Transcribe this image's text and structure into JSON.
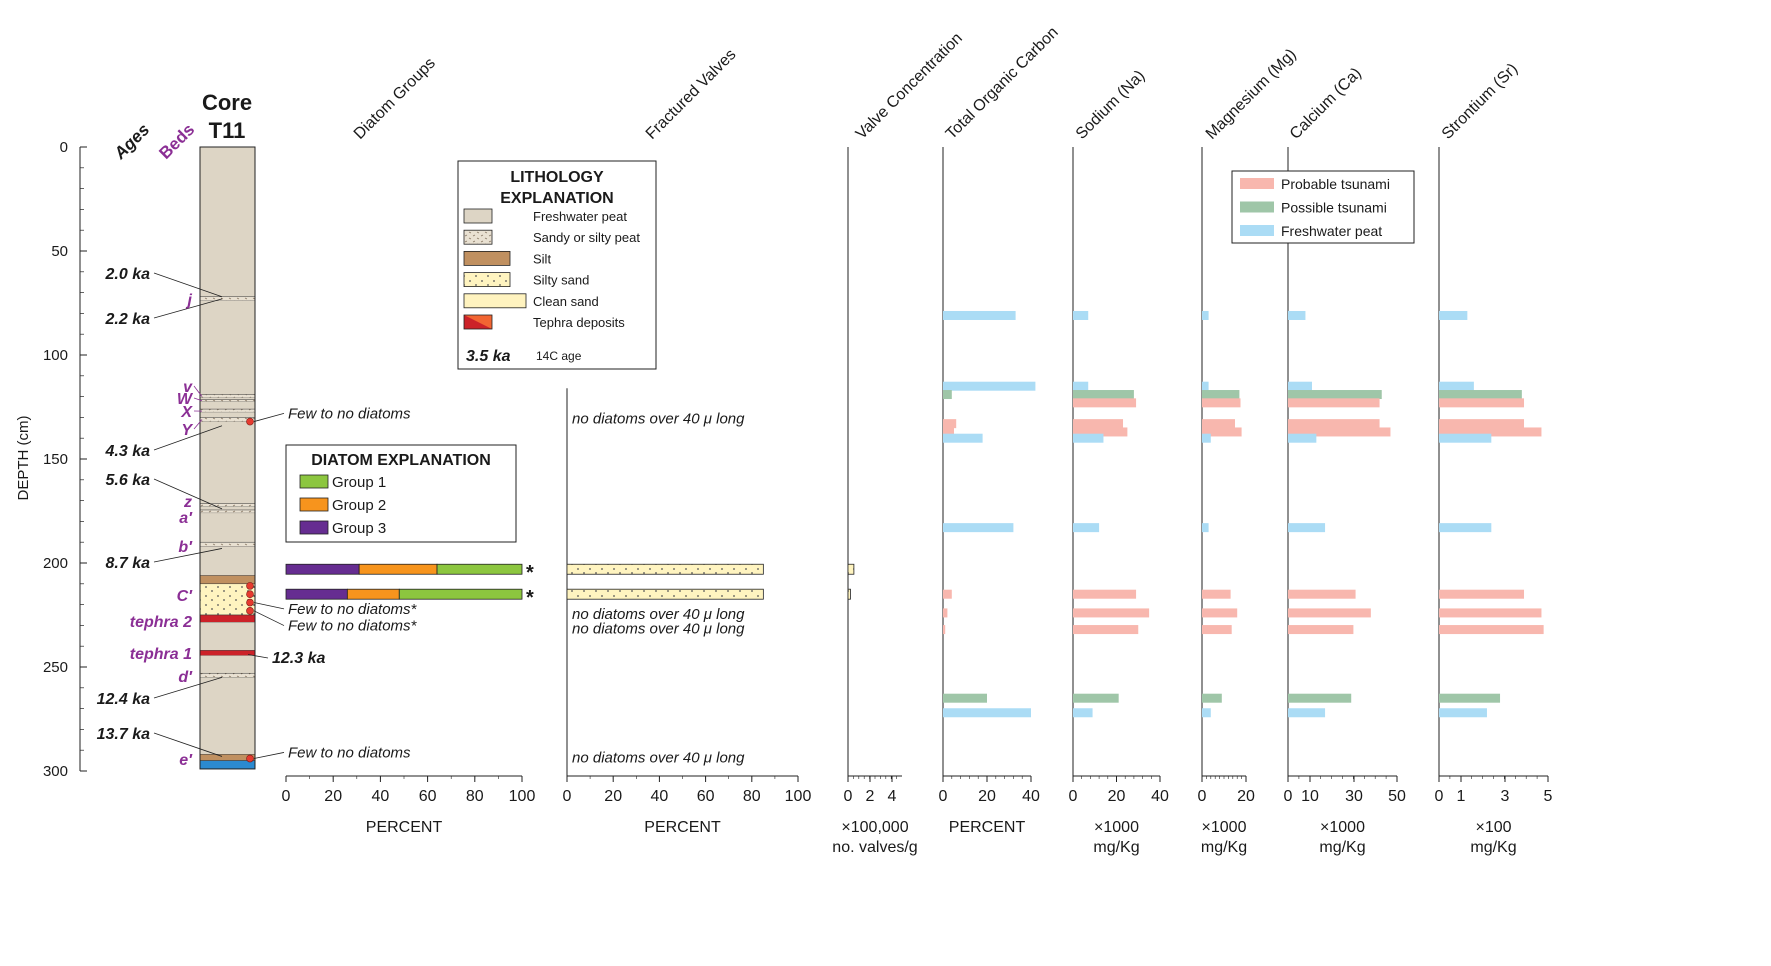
{
  "core": {
    "title_line1": "Core",
    "title_line2": "T11",
    "ages_label": "Ages",
    "beds_label": "Beds",
    "depth_axis": {
      "label": "DEPTH (cm)",
      "min": 0,
      "max": 300,
      "ticks": [
        "0",
        "50",
        "100",
        "150",
        "200",
        "250",
        "300"
      ]
    },
    "ages": [
      {
        "text": "2.0 ka",
        "depth": 72
      },
      {
        "text": "2.2 ka",
        "depth": 73
      },
      {
        "text": "4.3 ka",
        "depth": 134
      },
      {
        "text": "5.6 ka",
        "depth": 174
      },
      {
        "text": "8.7 ka",
        "depth": 193
      },
      {
        "text": "12.3 ka",
        "depth": 244
      },
      {
        "text": "12.4 ka",
        "depth": 255
      },
      {
        "text": "13.7 ka",
        "depth": 293
      }
    ],
    "beds": [
      {
        "text": "j",
        "depth": 73
      },
      {
        "text": "v",
        "depth": 120
      },
      {
        "text": "W",
        "depth": 122
      },
      {
        "text": "X",
        "depth": 127
      },
      {
        "text": "Y",
        "depth": 131
      },
      {
        "text": "z",
        "depth": 172
      },
      {
        "text": "a′",
        "depth": 175
      },
      {
        "text": "b′",
        "depth": 191
      },
      {
        "text": "C′",
        "depth": 215
      },
      {
        "text": "tephra 2",
        "depth": 227
      },
      {
        "text": "tephra 1",
        "depth": 243
      },
      {
        "text": "d′",
        "depth": 255
      },
      {
        "text": "e′",
        "depth": 294
      }
    ],
    "layers": [
      {
        "type": "peat",
        "top": 0,
        "bottom": 72
      },
      {
        "type": "sandy_peat",
        "top": 72,
        "bottom": 74
      },
      {
        "type": "peat",
        "top": 74,
        "bottom": 119
      },
      {
        "type": "sandy_peat",
        "top": 119,
        "bottom": 120.5
      },
      {
        "type": "peat",
        "top": 120.5,
        "bottom": 121.5
      },
      {
        "type": "sandy_peat",
        "top": 121.5,
        "bottom": 122.5
      },
      {
        "type": "peat",
        "top": 122.5,
        "bottom": 126
      },
      {
        "type": "sandy_peat",
        "top": 126,
        "bottom": 127.5
      },
      {
        "type": "peat",
        "top": 127.5,
        "bottom": 130
      },
      {
        "type": "sandy_peat",
        "top": 130,
        "bottom": 132
      },
      {
        "type": "peat",
        "top": 132,
        "bottom": 171.5
      },
      {
        "type": "sandy_peat",
        "top": 171.5,
        "bottom": 173
      },
      {
        "type": "peat",
        "top": 173,
        "bottom": 174.5
      },
      {
        "type": "sandy_peat",
        "top": 174.5,
        "bottom": 176
      },
      {
        "type": "peat",
        "top": 176,
        "bottom": 190
      },
      {
        "type": "sandy_peat",
        "top": 190,
        "bottom": 192
      },
      {
        "type": "peat",
        "top": 192,
        "bottom": 206
      },
      {
        "type": "silt",
        "top": 206,
        "bottom": 210
      },
      {
        "type": "silty_sand",
        "top": 210,
        "bottom": 225
      },
      {
        "type": "tephra",
        "top": 225,
        "bottom": 228.5
      },
      {
        "type": "peat",
        "top": 228.5,
        "bottom": 242
      },
      {
        "type": "tephra",
        "top": 242,
        "bottom": 244.5
      },
      {
        "type": "peat",
        "top": 244.5,
        "bottom": 253
      },
      {
        "type": "sandy_peat",
        "top": 253,
        "bottom": 255
      },
      {
        "type": "peat",
        "top": 255,
        "bottom": 292
      },
      {
        "type": "silt",
        "top": 292,
        "bottom": 295
      },
      {
        "type": "base",
        "top": 295,
        "bottom": 299
      }
    ],
    "samples": [
      {
        "depth": 132,
        "note": "Few to no diatoms",
        "note_depth": 130
      },
      {
        "depth": 211,
        "note": "",
        "note_depth": 211
      },
      {
        "depth": 215,
        "note": "",
        "note_depth": 215
      },
      {
        "depth": 219,
        "note": "Few to no diatoms*",
        "note_depth": 224
      },
      {
        "depth": 223,
        "note": "Few to no diatoms*",
        "note_depth": 232
      },
      {
        "depth": 294,
        "note": "Few to no diatoms",
        "note_depth": 293
      }
    ]
  },
  "lithology_legend": {
    "title_line1": "LITHOLOGY",
    "title_line2": "EXPLANATION",
    "items": [
      {
        "type": "peat",
        "label": "Freshwater peat"
      },
      {
        "type": "sandy_peat",
        "label": "Sandy or silty peat"
      },
      {
        "type": "silt",
        "label": "Silt"
      },
      {
        "type": "silty_sand",
        "label": "Silty sand"
      },
      {
        "type": "clean_sand",
        "label": "Clean sand"
      },
      {
        "type": "tephra",
        "label": "Tephra deposits"
      }
    ],
    "age_example": "3.5 ka",
    "age_example_label": "14C age"
  },
  "diatom_legend": {
    "title": "DIATOM EXPLANATION",
    "items": [
      {
        "label": "Group 1",
        "color": "#8cc63f"
      },
      {
        "label": "Group 2",
        "color": "#f7941d"
      },
      {
        "label": "Group 3",
        "color": "#662d91"
      }
    ]
  },
  "element_legend": [
    {
      "label": "Probable tsunami",
      "color": "#f8b7ae"
    },
    {
      "label": "Possible tsunami",
      "color": "#9fc6a8"
    },
    {
      "label": "Freshwater peat",
      "color": "#abdcf5"
    }
  ],
  "colors": {
    "peat": "#ddd5c5",
    "silt": "#c09060",
    "silty_sand": "#fff4c0",
    "clean_sand": "#fff3bf",
    "tephra": "#cc2229",
    "tephra_light": "#f26532",
    "base": "#2b8ad0",
    "probable": "#f8b7ae",
    "possible": "#9fc6a8",
    "peat_sample": "#abdcf5",
    "sample_dot": "#e63a2f"
  },
  "chart_data": [
    {
      "type": "bar",
      "title": "Diatom Groups",
      "xlabel": "PERCENT",
      "xlim": [
        0,
        100
      ],
      "ticks": [
        "0",
        "20",
        "40",
        "60",
        "80",
        "100"
      ],
      "rows": [
        {
          "depth": 203,
          "group3": 31,
          "group2": 33,
          "group1": 36,
          "mark": "*"
        },
        {
          "depth": 215,
          "group3": 26,
          "group2": 22,
          "group1": 52,
          "mark": "*"
        }
      ]
    },
    {
      "type": "bar",
      "title": "Fractured Valves",
      "xlabel": "PERCENT",
      "xlim": [
        0,
        100
      ],
      "ticks": [
        "0",
        "20",
        "40",
        "60",
        "80",
        "100"
      ],
      "rows": [
        {
          "depth": 203,
          "value": 85
        },
        {
          "depth": 215,
          "value": 85
        }
      ],
      "notes": [
        {
          "depth": 130,
          "text": "no diatoms over 40 μ long"
        },
        {
          "depth": 224,
          "text": "no diatoms over 40 μ long"
        },
        {
          "depth": 231,
          "text": "no diatoms over 40 μ long"
        },
        {
          "depth": 293,
          "text": "no diatoms over 40 μ long"
        }
      ]
    },
    {
      "type": "bar",
      "title": "Valve Concentration",
      "xlabel_line1": "×100,000",
      "xlabel_line2": "no. valves/g",
      "xlim": [
        0,
        5.5
      ],
      "ticks": [
        "0",
        "2",
        "4"
      ],
      "rows": [
        {
          "depth": 203,
          "value": 0.6
        },
        {
          "depth": 215,
          "value": 0.25
        }
      ]
    },
    {
      "type": "bar",
      "title": "Total Organic Carbon",
      "xlabel": "PERCENT",
      "xlim": [
        0,
        40
      ],
      "ticks": [
        "0",
        "20",
        "40"
      ],
      "rows": [
        {
          "depth": 81,
          "value": 33,
          "class": "peat"
        },
        {
          "depth": 115,
          "value": 42,
          "class": "peat"
        },
        {
          "depth": 119,
          "value": 4,
          "class": "possible"
        },
        {
          "depth": 133,
          "value": 6,
          "class": "probable"
        },
        {
          "depth": 137,
          "value": 5,
          "class": "probable"
        },
        {
          "depth": 140,
          "value": 18,
          "class": "peat"
        },
        {
          "depth": 183,
          "value": 32,
          "class": "peat"
        },
        {
          "depth": 215,
          "value": 4,
          "class": "probable"
        },
        {
          "depth": 224,
          "value": 2,
          "class": "probable"
        },
        {
          "depth": 232,
          "value": 1,
          "class": "probable"
        },
        {
          "depth": 265,
          "value": 20,
          "class": "possible"
        },
        {
          "depth": 272,
          "value": 40,
          "class": "peat"
        }
      ]
    },
    {
      "type": "bar",
      "title": "Sodium (Na)",
      "xlabel_line1": "×1000",
      "xlabel_line2": "mg/Kg",
      "xlim": [
        0,
        40
      ],
      "ticks": [
        "0",
        "20",
        "40"
      ],
      "rows": [
        {
          "depth": 81,
          "value": 7,
          "class": "peat"
        },
        {
          "depth": 115,
          "value": 7,
          "class": "peat"
        },
        {
          "depth": 119,
          "value": 28,
          "class": "possible"
        },
        {
          "depth": 123,
          "value": 29,
          "class": "probable"
        },
        {
          "depth": 133,
          "value": 23,
          "class": "probable"
        },
        {
          "depth": 137,
          "value": 25,
          "class": "probable"
        },
        {
          "depth": 140,
          "value": 14,
          "class": "peat"
        },
        {
          "depth": 183,
          "value": 12,
          "class": "peat"
        },
        {
          "depth": 215,
          "value": 29,
          "class": "probable"
        },
        {
          "depth": 224,
          "value": 35,
          "class": "probable"
        },
        {
          "depth": 232,
          "value": 30,
          "class": "probable"
        },
        {
          "depth": 265,
          "value": 21,
          "class": "possible"
        },
        {
          "depth": 272,
          "value": 9,
          "class": "peat"
        }
      ]
    },
    {
      "type": "bar",
      "title": "Magnesium (Mg)",
      "xlabel_line1": "×1000",
      "xlabel_line2": "mg/Kg",
      "xlim": [
        0,
        20
      ],
      "ticks": [
        "0",
        "20"
      ],
      "rows": [
        {
          "depth": 81,
          "value": 3,
          "class": "peat"
        },
        {
          "depth": 115,
          "value": 3,
          "class": "peat"
        },
        {
          "depth": 119,
          "value": 17,
          "class": "possible"
        },
        {
          "depth": 123,
          "value": 17.5,
          "class": "probable"
        },
        {
          "depth": 133,
          "value": 15,
          "class": "probable"
        },
        {
          "depth": 137,
          "value": 18,
          "class": "probable"
        },
        {
          "depth": 140,
          "value": 4,
          "class": "peat"
        },
        {
          "depth": 183,
          "value": 3,
          "class": "peat"
        },
        {
          "depth": 215,
          "value": 13,
          "class": "probable"
        },
        {
          "depth": 224,
          "value": 16,
          "class": "probable"
        },
        {
          "depth": 232,
          "value": 13.5,
          "class": "probable"
        },
        {
          "depth": 265,
          "value": 9,
          "class": "possible"
        },
        {
          "depth": 272,
          "value": 4,
          "class": "peat"
        }
      ]
    },
    {
      "type": "bar",
      "title": "Calcium (Ca)",
      "xlabel_line1": "×1000",
      "xlabel_line2": "mg/Kg",
      "xlim": [
        0,
        50
      ],
      "ticks": [
        "0",
        "10",
        "30",
        "50"
      ],
      "rows": [
        {
          "depth": 81,
          "value": 8,
          "class": "peat"
        },
        {
          "depth": 115,
          "value": 11,
          "class": "peat"
        },
        {
          "depth": 119,
          "value": 43,
          "class": "possible"
        },
        {
          "depth": 123,
          "value": 42,
          "class": "probable"
        },
        {
          "depth": 133,
          "value": 42,
          "class": "probable"
        },
        {
          "depth": 137,
          "value": 47,
          "class": "probable"
        },
        {
          "depth": 140,
          "value": 13,
          "class": "peat"
        },
        {
          "depth": 183,
          "value": 17,
          "class": "peat"
        },
        {
          "depth": 215,
          "value": 31,
          "class": "probable"
        },
        {
          "depth": 224,
          "value": 38,
          "class": "probable"
        },
        {
          "depth": 232,
          "value": 30,
          "class": "probable"
        },
        {
          "depth": 265,
          "value": 29,
          "class": "possible"
        },
        {
          "depth": 272,
          "value": 17,
          "class": "peat"
        }
      ]
    },
    {
      "type": "bar",
      "title": "Strontium (Sr)",
      "xlabel_line1": "×100",
      "xlabel_line2": "mg/Kg",
      "xlim": [
        0,
        5
      ],
      "ticks": [
        "0",
        "1",
        "3",
        "5"
      ],
      "rows": [
        {
          "depth": 81,
          "value": 1.3,
          "class": "peat"
        },
        {
          "depth": 115,
          "value": 1.6,
          "class": "peat"
        },
        {
          "depth": 119,
          "value": 3.8,
          "class": "possible"
        },
        {
          "depth": 123,
          "value": 3.9,
          "class": "probable"
        },
        {
          "depth": 133,
          "value": 3.9,
          "class": "probable"
        },
        {
          "depth": 137,
          "value": 4.7,
          "class": "probable"
        },
        {
          "depth": 140,
          "value": 2.4,
          "class": "peat"
        },
        {
          "depth": 183,
          "value": 2.4,
          "class": "peat"
        },
        {
          "depth": 215,
          "value": 3.9,
          "class": "probable"
        },
        {
          "depth": 224,
          "value": 4.7,
          "class": "probable"
        },
        {
          "depth": 232,
          "value": 4.8,
          "class": "probable"
        },
        {
          "depth": 265,
          "value": 2.8,
          "class": "possible"
        },
        {
          "depth": 272,
          "value": 2.2,
          "class": "peat"
        }
      ]
    }
  ]
}
